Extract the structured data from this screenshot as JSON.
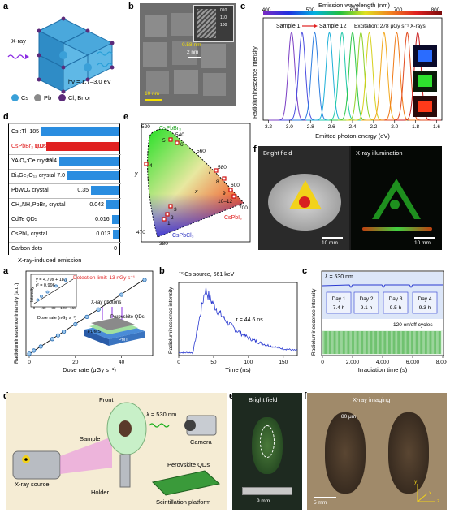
{
  "panel_labels": {
    "a_top": "a",
    "b_top": "b",
    "c_top": "c",
    "d_top": "d",
    "e_top": "e",
    "f_top": "f",
    "a_bot": "a",
    "b_bot": "b",
    "c_bot": "c",
    "d_bot": "d",
    "e_bot": "e",
    "f_bot": "f"
  },
  "panel_a_top": {
    "xray_label": "X-ray",
    "energy_label": "hν = 1.7–3.0 eV",
    "legend": [
      {
        "label": "Cs",
        "color": "#3aa0d8"
      },
      {
        "label": "Pb",
        "color": "#8a8a8a"
      },
      {
        "label": "Cl, Br or I",
        "color": "#5b2a7a"
      }
    ]
  },
  "panel_b_top": {
    "scale_main": "10 nm",
    "scale_inset": "2 nm",
    "spacing": "0.58 nm",
    "hkl": [
      "010",
      "110",
      "100"
    ]
  },
  "panel_c_top": {
    "chart_data": {
      "type": "line",
      "title": "Emission wavelength (nm)",
      "top_ticks": [
        "400",
        "500",
        "600",
        "700",
        "800"
      ],
      "xlabel": "Emitted photon energy (eV)",
      "ylabel": "Radioluminescence intensity",
      "x_ticks": [
        "3.2",
        "3.0",
        "2.8",
        "2.6",
        "2.4",
        "2.2",
        "2.0",
        "1.8",
        "1.6"
      ],
      "xlim": [
        3.25,
        1.55
      ],
      "sample_start": "Sample 1",
      "sample_end": "Sample 12",
      "excitation": "Excitation: 278 μGy s⁻¹ X-rays",
      "peaks": [
        2.98,
        2.88,
        2.76,
        2.62,
        2.5,
        2.4,
        2.32,
        2.24,
        2.1,
        1.98,
        1.88,
        1.78
      ],
      "colors": [
        "#7b3fc4",
        "#4a4de0",
        "#2d7de0",
        "#1fb0d8",
        "#20c8a8",
        "#2cc74a",
        "#8fd22a",
        "#d6d01c",
        "#f2a81d",
        "#f07a18",
        "#e24a1e",
        "#c81e1e"
      ]
    }
  },
  "panel_d_top": {
    "chart_data": {
      "type": "bar",
      "xlabel": "X-ray-induced emission",
      "categories": [
        "CsI:Tl",
        "CsPbBr₃ QDs",
        "YAlO₃:Ce crystal",
        "Bi₄Ge₃O₁₂ crystal",
        "PbWO₄ crystal",
        "CH₃NH₃PbBr₃ crystal",
        "CdTe QDs",
        "CsPbI₃ crystal",
        "Carbon dots"
      ],
      "values": [
        185,
        100,
        19.4,
        7.0,
        0.35,
        0.042,
        0.016,
        0.013,
        0
      ],
      "value_labels": [
        "185",
        "100",
        "19.4",
        "7.0",
        "0.35",
        "0.042",
        "0.016",
        "0.013",
        "0"
      ],
      "colors": [
        "#2a8de0",
        "#e02020",
        "#2a8de0",
        "#2a8de0",
        "#2a8de0",
        "#2a8de0",
        "#2a8de0",
        "#2a8de0",
        "#2a8de0"
      ]
    }
  },
  "panel_e_top": {
    "chart_data": {
      "type": "scatter",
      "xlabel": "x",
      "ylabel": "y",
      "wavelength_labels": [
        "520",
        "540",
        "560",
        "580",
        "600",
        "700",
        "470",
        "380"
      ],
      "compound_labels": [
        "CsPbBr₃",
        "CsPbI₃",
        "CsPbCl₃"
      ],
      "point_labels": [
        "1",
        "2",
        "3",
        "4",
        "5",
        "6",
        "7",
        "8",
        "9",
        "10–12"
      ]
    }
  },
  "panel_f_top": {
    "left_title": "Bright field",
    "right_title": "X-ray illumination",
    "scale_left": "10 mm",
    "scale_right": "10 mm"
  },
  "panel_a_bot": {
    "chart_data": {
      "type": "scatter",
      "xlabel": "Dose rate (μGy s⁻¹)",
      "ylabel": "Radioluminescence intensity (a.u.)",
      "x_ticks": [
        "0",
        "20",
        "40"
      ],
      "detection": "Detection limit: 13 nGy s⁻¹",
      "inset_fit": "y = 4.79x + 18.7",
      "inset_r2": "r² = 0.996",
      "inset_xlabel": "Dose rate (nGy s⁻¹)",
      "inset_ylabel": "Intensity",
      "inset_ticks": [
        "0",
        "40",
        "80",
        "120",
        "160"
      ],
      "xray_photons": "X-ray photons",
      "qd_label": "Perovskite QDs",
      "pdms_label": "PDMS",
      "pmt_label": "PMT",
      "points": [
        [
          0.01,
          0.02
        ],
        [
          2,
          0.27
        ],
        [
          5,
          0.6
        ],
        [
          10,
          1.2
        ],
        [
          12.5,
          1.5
        ],
        [
          15,
          1.8
        ],
        [
          20,
          2.4
        ],
        [
          25,
          3.0
        ],
        [
          30,
          3.6
        ],
        [
          40,
          4.8
        ],
        [
          50,
          6.0
        ]
      ],
      "inset_points": [
        [
          15,
          25
        ],
        [
          30,
          50
        ],
        [
          55,
          80
        ],
        [
          90,
          120
        ],
        [
          130,
          160
        ]
      ]
    }
  },
  "panel_b_bot": {
    "chart_data": {
      "type": "line",
      "title": "¹³⁷Cs source, 661 keV",
      "xlabel": "Time (ns)",
      "ylabel": "Radioluminescence intensity",
      "x_ticks": [
        "0",
        "50",
        "100",
        "150"
      ],
      "tau": "τ = 44.6 ns"
    }
  },
  "panel_c_bot": {
    "chart_data": {
      "type": "line",
      "lambda": "λ = 530 nm",
      "xlabel": "Irradiation time (s)",
      "ylabel": "Radioluminescence intensity",
      "x_ticks": [
        "0",
        "2,000",
        "4,000",
        "6,000",
        "8,000"
      ],
      "days": [
        {
          "day": "Day 1",
          "hours": "7.4 h"
        },
        {
          "day": "Day 2",
          "hours": "9.1 h"
        },
        {
          "day": "Day 3",
          "hours": "9.5 h"
        },
        {
          "day": "Day 4",
          "hours": "9.3 h"
        }
      ],
      "cycles": "120 on/off cycles"
    }
  },
  "panel_d_bot": {
    "front": "Front",
    "wavelength": "λ = 530 nm",
    "camera": "Camera",
    "sample": "Sample",
    "source": "X-ray source",
    "qds": "Perovskite QDs",
    "holder": "Holder",
    "platform": "Scintillation platform"
  },
  "panel_e_bot": {
    "title": "Bright field",
    "scale": "9 mm"
  },
  "panel_f_bot": {
    "title": "X-ray imaging",
    "size": "80 μm",
    "scale": "5 mm",
    "ax_y": "y",
    "ax_x": "x",
    "ax_z": "z"
  }
}
